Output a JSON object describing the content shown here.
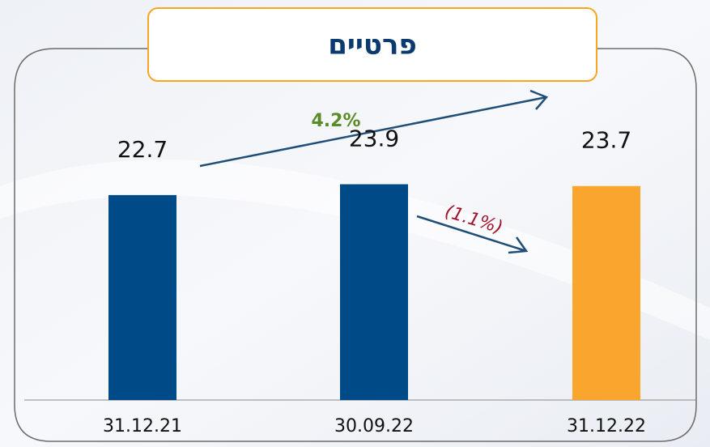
{
  "chart_data": {
    "type": "bar",
    "title": "פרטיים",
    "categories": [
      "31.12.21",
      "30.09.22",
      "31.12.22"
    ],
    "values": [
      22.7,
      23.9,
      23.7
    ],
    "colors": [
      "#004b87",
      "#004b87",
      "#f9a52e"
    ],
    "annotations": [
      "4.2%",
      "(1.1%)"
    ]
  }
}
